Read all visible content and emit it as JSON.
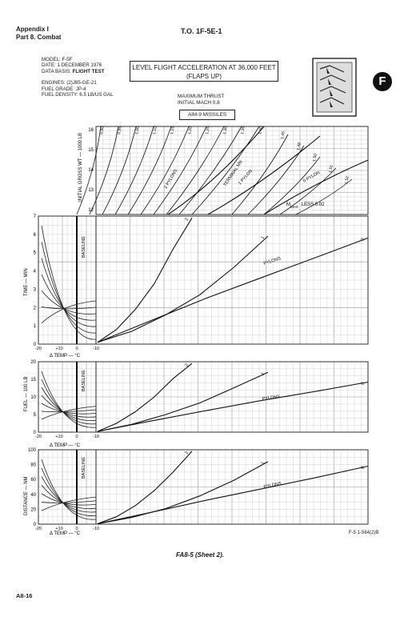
{
  "header": {
    "appendix": "Appendix I",
    "part": "Part 8. Combat",
    "to_number": "T.O. 1F-5E-1"
  },
  "meta": {
    "model": "MODEL: F-5F",
    "date": "DATE: 1 DECEMBER 1976",
    "data_basis_label": "DATA BASIS:",
    "data_basis_value": "FLIGHT TEST",
    "engines": "ENGINES: (2)J85-GE-21",
    "fuel_grade": "FUEL GRADE: JP-4",
    "fuel_density": "FUEL DENSITY: 6.5 LB/US GAL"
  },
  "title": {
    "line1": "LEVEL FLIGHT ACCELERATION AT 36,000 FEET",
    "line2": "(FLAPS UP)"
  },
  "conditions": {
    "thrust": "MAXIMUM THRUST",
    "initial_mach": "INITIAL MACH 0.8",
    "missiles": "AIM-9 MISSILES"
  },
  "badge": "F",
  "chart_labels": {
    "gross_wt_axis": "INITIAL GROSS WT — 1000 LB",
    "time_axis": "TIME — MIN",
    "fuel_axis": "FUEL — 100 LB",
    "distance_axis": "DISTANCE — NM",
    "temp_axis": "Δ TEMP — °C",
    "baseline": "BASELINE",
    "pylons": "PYLONS",
    "terminal_mn": "TERMINAL MN",
    "mmax_less": "M",
    "mmax_sub": "MAX",
    "mmax_tail": "LESS 0.02",
    "two_pylons": "2 PYLONS",
    "one_pylon": "1 PYLON",
    "zero_pylon": "0 PYLON"
  },
  "mach_labels": [
    "0.90",
    "0.95",
    "1.00",
    "1.10",
    "1.15",
    "1.20",
    "1.25",
    "1.30",
    "1.35",
    "1.40",
    "1.45",
    "1.48",
    "1.50",
    "1.51",
    "1.52"
  ],
  "gross_wt_ticks": [
    "16",
    "15",
    "14",
    "13",
    "12"
  ],
  "time_ticks": [
    "7",
    "6",
    "5",
    "4",
    "3",
    "2",
    "1",
    "0"
  ],
  "fuel_ticks": [
    "20",
    "15",
    "10",
    "5",
    "0"
  ],
  "distance_ticks": [
    "100",
    "80",
    "60",
    "40",
    "20",
    "0"
  ],
  "temp_ticks": [
    "-20",
    "+10",
    "0",
    "-10"
  ],
  "curve_labels": {
    "two": "2",
    "one": "1",
    "zero": "0"
  },
  "figure_ref": "F-5 1-564(2)B",
  "caption": "FA8-5 (Sheet 2).",
  "page_number": "A8-16",
  "chart_data": [
    {
      "type": "line",
      "title": "",
      "ylabel": "TIME — MIN",
      "ylim": [
        0,
        7
      ],
      "series": [
        {
          "name": "2",
          "x": [
            0,
            0.2,
            0.4,
            0.6,
            0.8,
            1.0
          ],
          "values": [
            0.1,
            0.8,
            1.9,
            3.3,
            5.2,
            6.9
          ]
        },
        {
          "name": "1",
          "x": [
            0,
            0.2,
            0.4,
            0.6,
            0.8,
            1.0
          ],
          "values": [
            0.1,
            0.7,
            1.6,
            2.7,
            4.2,
            5.9
          ]
        },
        {
          "name": "0",
          "x": [
            0,
            0.2,
            0.4,
            0.6,
            0.8,
            1.0
          ],
          "values": [
            0.1,
            1.3,
            2.5,
            3.6,
            4.7,
            5.8
          ]
        }
      ]
    },
    {
      "type": "line",
      "title": "",
      "ylabel": "FUEL — 100 LB",
      "ylim": [
        0,
        20
      ],
      "series": [
        {
          "name": "2",
          "x": [
            0,
            0.2,
            0.4,
            0.6,
            0.8,
            1.0
          ],
          "values": [
            0.2,
            2.5,
            5.8,
            10.0,
            15.2,
            19.5
          ]
        },
        {
          "name": "1",
          "x": [
            0,
            0.2,
            0.4,
            0.6,
            0.8,
            1.0
          ],
          "values": [
            0.2,
            2.2,
            5.0,
            8.3,
            12.6,
            17.0
          ]
        },
        {
          "name": "0",
          "x": [
            0,
            0.2,
            0.4,
            0.6,
            0.8,
            1.0
          ],
          "values": [
            0.2,
            3.2,
            6.1,
            8.9,
            11.5,
            14.2
          ]
        }
      ]
    },
    {
      "type": "line",
      "title": "",
      "ylabel": "DISTANCE — NM",
      "ylim": [
        0,
        100
      ],
      "series": [
        {
          "name": "2",
          "x": [
            0,
            0.2,
            0.4,
            0.6,
            0.8,
            1.0
          ],
          "values": [
            0.5,
            10,
            25,
            45,
            70,
            98
          ]
        },
        {
          "name": "1",
          "x": [
            0,
            0.2,
            0.4,
            0.6,
            0.8,
            1.0
          ],
          "values": [
            0.5,
            9,
            21,
            38,
            59,
            84
          ]
        },
        {
          "name": "0",
          "x": [
            0,
            0.2,
            0.4,
            0.6,
            0.8,
            1.0
          ],
          "values": [
            0.5,
            16,
            32,
            47,
            62,
            78
          ]
        }
      ]
    }
  ]
}
